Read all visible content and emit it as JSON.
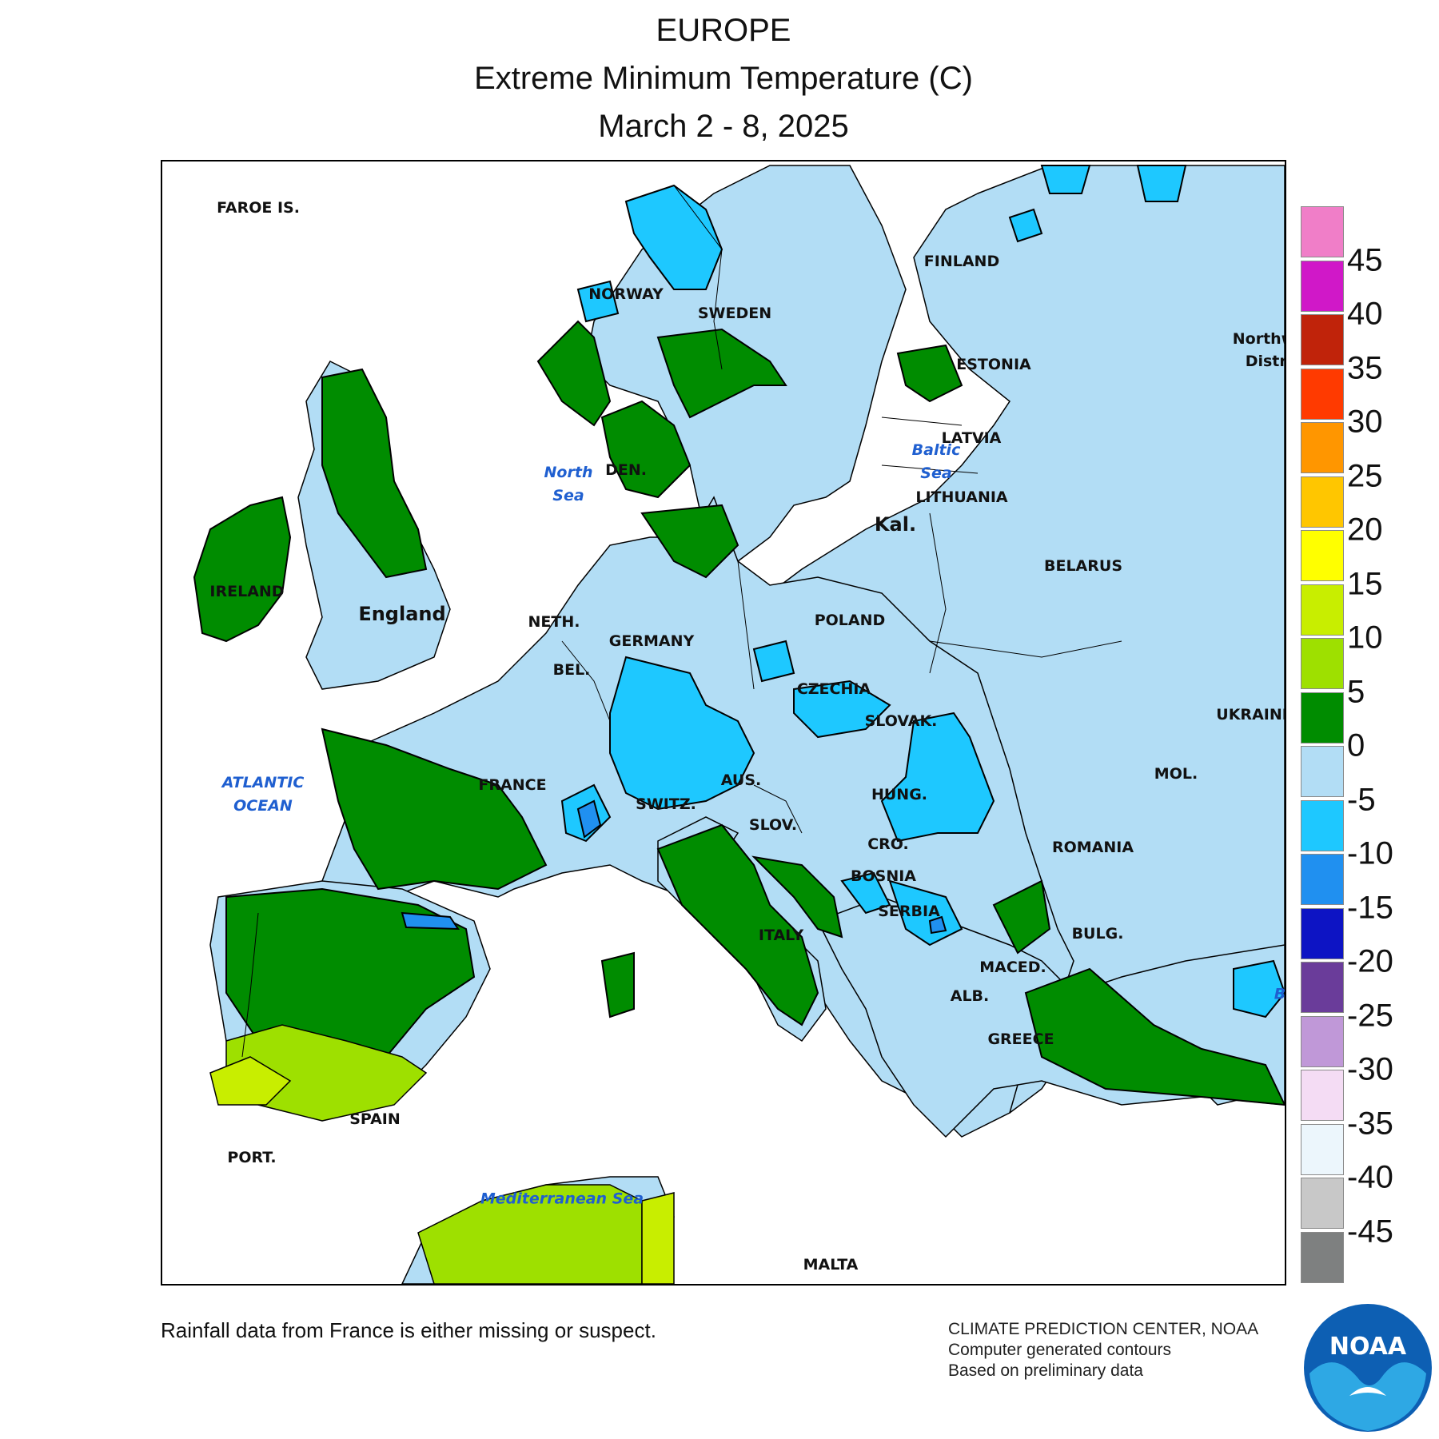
{
  "header": {
    "region": "EUROPE",
    "title": "Extreme Minimum Temperature (C)",
    "dates": "March 2 - 8, 2025"
  },
  "legend": {
    "colors": [
      "#f07ec8",
      "#d018c8",
      "#c0230a",
      "#ff3a00",
      "#ff9600",
      "#ffc600",
      "#ffff00",
      "#c8ee00",
      "#9ee000",
      "#008c00",
      "#b2ddf5",
      "#1ec8ff",
      "#2090f0",
      "#0d14c4",
      "#6a3c9a",
      "#c098d8",
      "#f4dcf4",
      "#ecf6fc",
      "#c8c8c8",
      "#7e8080"
    ],
    "ticks": [
      "45",
      "40",
      "35",
      "30",
      "25",
      "20",
      "15",
      "10",
      "5",
      "0",
      "-5",
      "-10",
      "-15",
      "-20",
      "-25",
      "-30",
      "-35",
      "-40",
      "-45"
    ]
  },
  "map": {
    "countries": {
      "faroe": "FAROE IS.",
      "norway": "NORWAY",
      "sweden": "SWEDEN",
      "finland": "FINLAND",
      "estonia": "ESTONIA",
      "latvia": "LATVIA",
      "lithuania": "LITHUANIA",
      "kal": "Kal.",
      "northwest": "Northw",
      "district": "Distri",
      "belarus": "BELARUS",
      "ireland": "IRELAND",
      "england": "England",
      "den": "DEN.",
      "neth": "NETH.",
      "germany": "GERMANY",
      "poland": "POLAND",
      "bel": "BEL.",
      "czechia": "CZECHIA",
      "slovak": "SLOVAK.",
      "ukraine": "UKRAINE",
      "france": "FRANCE",
      "switz": "SWITZ.",
      "aus": "AUS.",
      "hung": "HUNG.",
      "mol": "MOL.",
      "romania": "ROMANIA",
      "slov": "SLOV.",
      "cro": "CRO.",
      "bosnia": "BOSNIA",
      "serbia": "SERBIA",
      "bulg": "BULG.",
      "italy": "ITALY",
      "maced": "MACED.",
      "alb": "ALB.",
      "greece": "GREECE",
      "spain": "SPAIN",
      "port": "PORT.",
      "malta": "MALTA"
    },
    "water": {
      "north_sea": "North\nSea",
      "baltic_sea": "Baltic\nSea",
      "atlantic": "ATLANTIC\nOCEAN",
      "mediterranean": "Mediterranean Sea",
      "black_sea_partial": "B"
    },
    "ranges": {
      "green": "0 to 5",
      "lightblue": "-5 to 0",
      "cyan": "-10 to -5",
      "blue": "-15 to -10",
      "lime": "5 to 10",
      "yellowgreen": "10 to 15"
    }
  },
  "footer": {
    "note": "Rainfall data from France is either missing or suspect.",
    "credit_line1": "CLIMATE PREDICTION CENTER, NOAA",
    "credit_line2": "Computer generated contours",
    "credit_line3": "Based on preliminary data",
    "logo_text": "NOAA"
  }
}
